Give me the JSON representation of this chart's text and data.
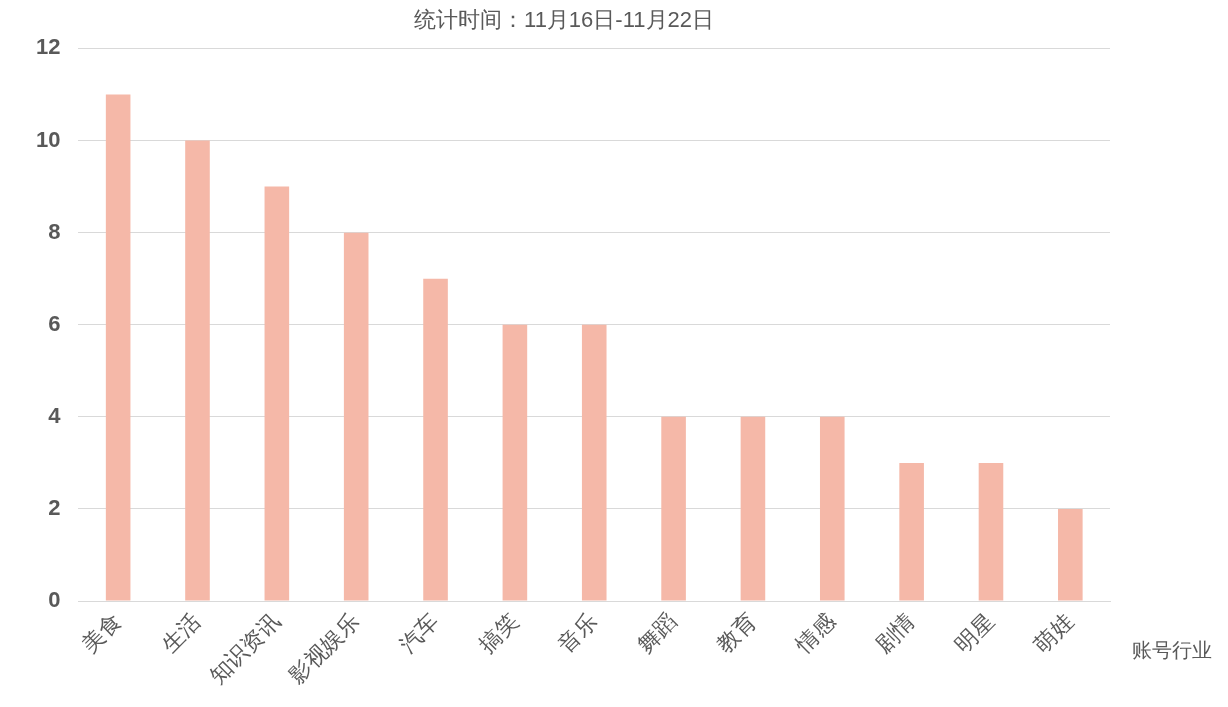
{
  "chart_data": {
    "type": "bar",
    "title": "统计时间：11月16日-11月22日",
    "xlabel": "账号行业",
    "categories": [
      "美食",
      "生活",
      "知识资讯",
      "影视娱乐",
      "汽车",
      "搞笑",
      "音乐",
      "舞蹈",
      "教育",
      "情感",
      "剧情",
      "明星",
      "萌娃"
    ],
    "values": [
      11,
      10,
      9,
      8,
      7,
      6,
      6,
      4,
      4,
      4,
      3,
      3,
      2
    ],
    "color": "#f5b8a8",
    "ylim": [
      0,
      12
    ],
    "yticks": [
      0,
      2,
      4,
      6,
      8,
      10,
      12
    ],
    "grid": "y",
    "legend": false
  }
}
